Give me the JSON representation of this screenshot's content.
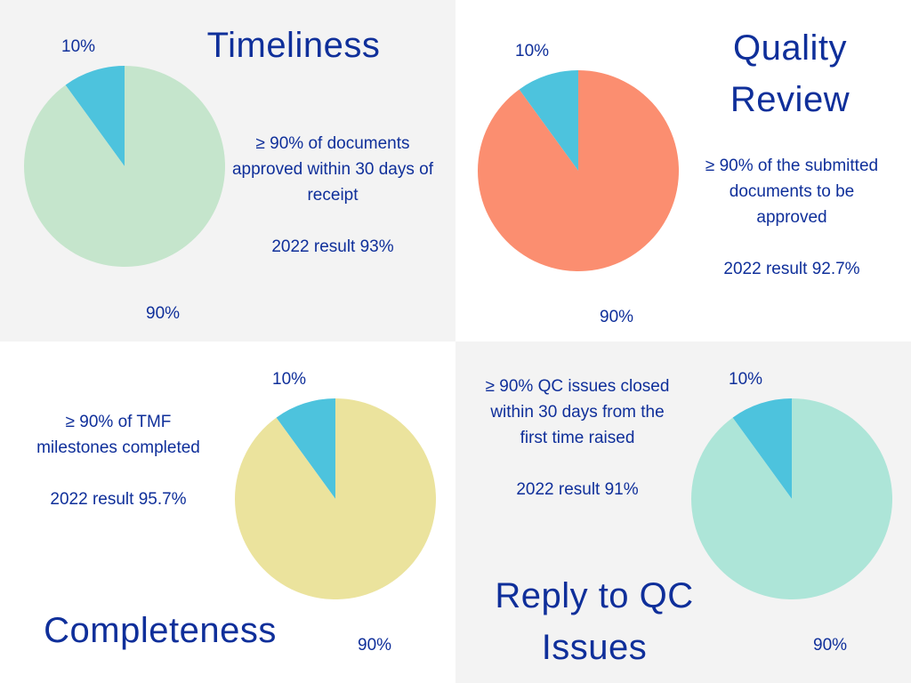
{
  "colors": {
    "text": "#0f2f9a",
    "panel_gray": "#f3f3f3",
    "panel_white": "#ffffff",
    "slice_small": "#4dc3dd"
  },
  "chart_data": [
    {
      "type": "pie",
      "title": "Timeliness",
      "description": "≥ 90% of documents approved within 30 days of receipt",
      "result": "2022 result 93%",
      "slices": [
        {
          "label": "10%",
          "value": 10,
          "color": "#4dc3dd"
        },
        {
          "label": "90%",
          "value": 90,
          "color": "#c5e5cc"
        }
      ],
      "legend": "none"
    },
    {
      "type": "pie",
      "title": "Quality Review",
      "description": "≥ 90% of the submitted documents to be approved",
      "result": "2022 result 92.7%",
      "slices": [
        {
          "label": "10%",
          "value": 10,
          "color": "#4dc3dd"
        },
        {
          "label": "90%",
          "value": 90,
          "color": "#fb8e70"
        }
      ],
      "legend": "none"
    },
    {
      "type": "pie",
      "title": "Completeness",
      "description": "≥ 90% of TMF milestones completed",
      "result": "2022 result 95.7%",
      "slices": [
        {
          "label": "10%",
          "value": 10,
          "color": "#4dc3dd"
        },
        {
          "label": "90%",
          "value": 90,
          "color": "#ebe39d"
        }
      ],
      "legend": "none"
    },
    {
      "type": "pie",
      "title": "Reply to QC Issues",
      "description": "≥ 90% QC issues closed within 30 days from the first time raised",
      "result": "2022 result 91%",
      "slices": [
        {
          "label": "10%",
          "value": 10,
          "color": "#4dc3dd"
        },
        {
          "label": "90%",
          "value": 90,
          "color": "#ade5d8"
        }
      ],
      "legend": "none"
    }
  ]
}
